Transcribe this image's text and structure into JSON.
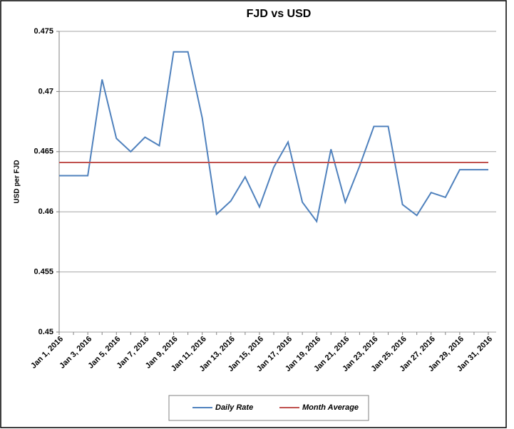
{
  "chart_data": {
    "type": "line",
    "title": "FJD vs USD",
    "y_label": "USD per FJD",
    "categories": [
      "Jan 1, 2016",
      null,
      "Jan 3, 2016",
      null,
      "Jan 5, 2016",
      null,
      "Jan 7, 2016",
      null,
      "Jan 9, 2016",
      null,
      "Jan 11, 2016",
      null,
      "Jan 13, 2016",
      null,
      "Jan 15, 2016",
      null,
      "Jan 17, 2016",
      null,
      "Jan 19, 2016",
      null,
      "Jan 21, 2016",
      null,
      "Jan 23, 2016",
      null,
      "Jan 25, 2016",
      null,
      "Jan 27, 2016",
      null,
      "Jan 29, 2016",
      null,
      "Jan 31, 2016"
    ],
    "series": [
      {
        "name": "Daily Rate",
        "color": "#4f81bd",
        "values": [
          0.463,
          0.463,
          0.463,
          0.471,
          0.4661,
          0.465,
          0.4662,
          0.4655,
          0.4733,
          0.4733,
          0.4678,
          0.4598,
          0.4609,
          0.4629,
          0.4604,
          0.4637,
          0.4658,
          0.4608,
          0.4592,
          0.4652,
          0.4608,
          0.4638,
          0.4671,
          0.4671,
          0.4606,
          0.4597,
          0.4616,
          0.4612,
          0.4635,
          0.4635,
          0.4635
        ]
      },
      {
        "name": "Month Average",
        "color": "#c0504d",
        "values": [
          0.4641,
          0.4641,
          0.4641,
          0.4641,
          0.4641,
          0.4641,
          0.4641,
          0.4641,
          0.4641,
          0.4641,
          0.4641,
          0.4641,
          0.4641,
          0.4641,
          0.4641,
          0.4641,
          0.4641,
          0.4641,
          0.4641,
          0.4641,
          0.4641,
          0.4641,
          0.4641,
          0.4641,
          0.4641,
          0.4641,
          0.4641,
          0.4641,
          0.4641,
          0.4641,
          0.4641
        ]
      }
    ],
    "ylim": [
      0.45,
      0.475
    ],
    "yticks": [
      0.45,
      0.455,
      0.46,
      0.465,
      0.47,
      0.475
    ],
    "grid": true,
    "legend": "bottom"
  }
}
